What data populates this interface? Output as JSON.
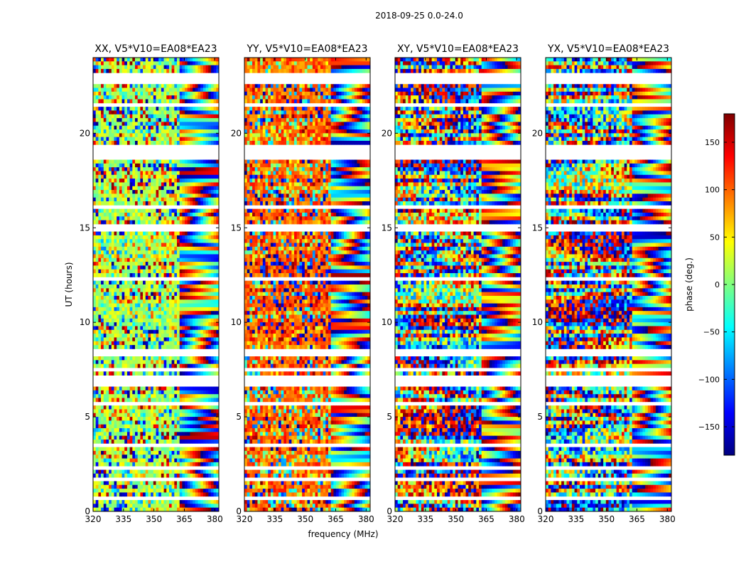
{
  "chart_data": {
    "type": "heatmap",
    "suptitle": "2018-09-25 0.0-24.0",
    "xlabel": "frequency (MHz)",
    "ylabel": "UT (hours)",
    "xlim": [
      320,
      382
    ],
    "ylim": [
      0,
      24
    ],
    "x_ticks": [
      320,
      335,
      350,
      365,
      380
    ],
    "y_ticks": [
      0,
      5,
      10,
      15,
      20
    ],
    "panels": [
      {
        "title": "XX, V5*V10=EA08*EA23"
      },
      {
        "title": "YY, V5*V10=EA08*EA23"
      },
      {
        "title": "XY, V5*V10=EA08*EA23"
      },
      {
        "title": "YX, V5*V10=EA08*EA23"
      }
    ],
    "colorbar": {
      "label": "phase (deg.)",
      "range": [
        -180,
        180
      ],
      "ticks": [
        -150,
        -100,
        -50,
        0,
        50,
        100,
        150
      ],
      "colormap": "jet",
      "colors": [
        "#00007f",
        "#0000ff",
        "#007fff",
        "#00ffff",
        "#7fff7f",
        "#ffff00",
        "#ff7f00",
        "#ff0000",
        "#7f0000"
      ]
    },
    "flagged_hours": [
      [
        18.6,
        19.4
      ],
      [
        14.8,
        15.1
      ],
      [
        6.6,
        7.1
      ],
      [
        22.7,
        22.9
      ],
      [
        21.5,
        21.6
      ],
      [
        12.2,
        12.3
      ],
      [
        8.3,
        8.5
      ],
      [
        7.4,
        7.5
      ],
      [
        4.1,
        4.2
      ],
      [
        3.3,
        3.5
      ],
      [
        1.6,
        1.7
      ],
      [
        1.1,
        1.2
      ],
      [
        0.6,
        0.7
      ],
      [
        23.1,
        23.2
      ],
      [
        16.1,
        16.2
      ],
      [
        9.9,
        10.0
      ],
      [
        5.7,
        5.8
      ],
      [
        2.3,
        2.4
      ]
    ]
  }
}
